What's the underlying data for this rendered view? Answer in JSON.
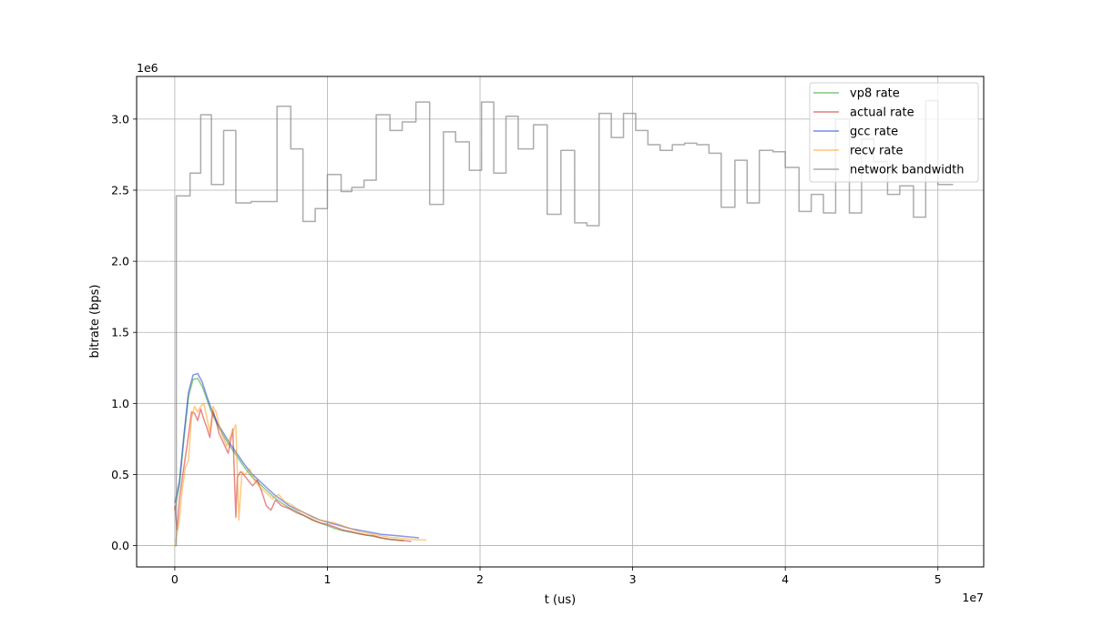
{
  "chart_data": {
    "type": "line",
    "xlabel": "t (us)",
    "ylabel": "bitrate (bps)",
    "x_offset_label": "1e7",
    "y_offset_label": "1e6",
    "xlim": [
      -2500000,
      53000000
    ],
    "ylim": [
      -150000,
      3300000
    ],
    "x_ticks": [
      0,
      10000000,
      20000000,
      30000000,
      40000000,
      50000000
    ],
    "x_tick_labels": [
      "0",
      "1",
      "2",
      "3",
      "4",
      "5"
    ],
    "y_ticks": [
      0,
      500000,
      1000000,
      1500000,
      2000000,
      2500000,
      3000000
    ],
    "y_tick_labels": [
      "0.0",
      "0.5",
      "1.0",
      "1.5",
      "2.0",
      "2.5",
      "3.0"
    ],
    "grid": true,
    "legend_position": "top-right",
    "series": [
      {
        "name": "vp8 rate",
        "color": "#2ca02c",
        "x": [
          0,
          300000,
          600000,
          900000,
          1200000,
          1500000,
          1800000,
          2100000,
          2400000,
          2800000,
          3200000,
          3600000,
          4000000,
          4500000,
          5000000,
          5500000,
          6000000,
          6500000,
          7000000,
          7500000,
          8000000,
          8500000,
          9000000,
          9500000,
          10000000,
          10500000,
          11000000,
          11500000,
          12000000,
          12500000,
          13000000,
          13500000,
          14000000,
          14500000,
          15000000
        ],
        "y": [
          250000,
          420000,
          750000,
          1050000,
          1170000,
          1175000,
          1120000,
          1030000,
          940000,
          850000,
          770000,
          700000,
          640000,
          560000,
          490000,
          440000,
          390000,
          340000,
          300000,
          265000,
          240000,
          210000,
          185000,
          160000,
          140000,
          120000,
          105000,
          95000,
          85000,
          75000,
          65000,
          55000,
          45000,
          40000,
          35000
        ]
      },
      {
        "name": "actual rate",
        "color": "#d62728",
        "x": [
          0,
          150000,
          300000,
          500000,
          800000,
          1100000,
          1300000,
          1500000,
          1700000,
          1900000,
          2100000,
          2300000,
          2500000,
          2700000,
          2900000,
          3200000,
          3500000,
          3800000,
          4000000,
          4100000,
          4300000,
          4500000,
          4800000,
          5100000,
          5400000,
          5700000,
          6000000,
          6300000,
          6600000,
          7000000,
          7500000,
          8000000,
          8500000,
          9000000,
          9500000,
          10000000,
          10500000,
          11000000,
          11500000,
          12000000,
          12500000,
          13000000,
          13500000,
          14000000,
          14500000,
          15000000,
          15500000
        ],
        "y": [
          280000,
          110000,
          320000,
          480000,
          700000,
          940000,
          930000,
          880000,
          960000,
          890000,
          830000,
          760000,
          950000,
          880000,
          790000,
          720000,
          650000,
          820000,
          200000,
          480000,
          520000,
          500000,
          460000,
          420000,
          460000,
          380000,
          280000,
          250000,
          320000,
          280000,
          260000,
          230000,
          210000,
          180000,
          160000,
          150000,
          130000,
          110000,
          100000,
          85000,
          75000,
          70000,
          55000,
          45000,
          40000,
          35000,
          30000
        ]
      },
      {
        "name": "gcc rate",
        "color": "#1f3fd6",
        "x": [
          0,
          300000,
          600000,
          900000,
          1200000,
          1500000,
          1800000,
          2100000,
          2400000,
          2800000,
          3200000,
          3600000,
          4000000,
          4500000,
          5000000,
          5500000,
          6000000,
          6500000,
          7000000,
          7500000,
          8000000,
          8500000,
          9000000,
          9500000,
          10000000,
          10500000,
          11000000,
          11500000,
          12000000,
          12500000,
          13000000,
          13500000,
          14000000,
          14500000,
          15000000,
          15500000,
          16000000
        ],
        "y": [
          300000,
          450000,
          780000,
          1080000,
          1200000,
          1210000,
          1150000,
          1050000,
          960000,
          860000,
          790000,
          720000,
          660000,
          580000,
          510000,
          460000,
          410000,
          360000,
          320000,
          280000,
          255000,
          230000,
          205000,
          180000,
          165000,
          150000,
          135000,
          120000,
          110000,
          100000,
          90000,
          80000,
          75000,
          70000,
          65000,
          60000,
          55000
        ]
      },
      {
        "name": "recv rate",
        "color": "#ff9f1a",
        "x": [
          0,
          300000,
          500000,
          700000,
          900000,
          1100000,
          1300000,
          1500000,
          1700000,
          1900000,
          2100000,
          2300000,
          2500000,
          2700000,
          2900000,
          3100000,
          3400000,
          3700000,
          4000000,
          4200000,
          4400000,
          4600000,
          4900000,
          5200000,
          5500000,
          5800000,
          6100000,
          6400000,
          6800000,
          7200000,
          7600000,
          8000000,
          8500000,
          9000000,
          9500000,
          10000000,
          10500000,
          11000000,
          11500000,
          12000000,
          12500000,
          13000000,
          13500000,
          14000000,
          14500000,
          15000000,
          15500000,
          16000000,
          16500000
        ],
        "y": [
          0,
          180000,
          400000,
          550000,
          600000,
          900000,
          980000,
          940000,
          980000,
          1000000,
          900000,
          800000,
          980000,
          940000,
          850000,
          780000,
          700000,
          780000,
          850000,
          180000,
          520000,
          500000,
          540000,
          460000,
          420000,
          390000,
          360000,
          330000,
          360000,
          310000,
          290000,
          260000,
          230000,
          200000,
          180000,
          170000,
          160000,
          140000,
          120000,
          100000,
          90000,
          80000,
          70000,
          60000,
          55000,
          50000,
          45000,
          40000,
          40000
        ]
      },
      {
        "name": "network bandwidth",
        "color": "#7f7f7f",
        "step": true,
        "x": [
          0,
          100000,
          1000000,
          1700000,
          2400000,
          3200000,
          4000000,
          5000000,
          6000000,
          6700000,
          7600000,
          8400000,
          9200000,
          10000000,
          10900000,
          11600000,
          12400000,
          13200000,
          14100000,
          14900000,
          15800000,
          16700000,
          17600000,
          18400000,
          19300000,
          20100000,
          20900000,
          21700000,
          22500000,
          23500000,
          24400000,
          25300000,
          26200000,
          27000000,
          27800000,
          28600000,
          29400000,
          30200000,
          31000000,
          31800000,
          32600000,
          33400000,
          34200000,
          35000000,
          35800000,
          36700000,
          37500000,
          38300000,
          39200000,
          40000000,
          40900000,
          41700000,
          42500000,
          43300000,
          44200000,
          45000000,
          45800000,
          46700000,
          47500000,
          48400000,
          49200000,
          50000000,
          51000000
        ],
        "y": [
          0,
          2460000,
          2620000,
          3030000,
          2540000,
          2920000,
          2410000,
          2420000,
          2420000,
          3090000,
          2790000,
          2280000,
          2370000,
          2610000,
          2490000,
          2520000,
          2570000,
          3030000,
          2920000,
          2980000,
          3120000,
          2400000,
          2910000,
          2840000,
          2640000,
          3120000,
          2620000,
          3020000,
          2790000,
          2960000,
          2330000,
          2780000,
          2270000,
          2250000,
          3040000,
          2870000,
          3040000,
          2920000,
          2820000,
          2780000,
          2820000,
          2830000,
          2820000,
          2760000,
          2380000,
          2710000,
          2410000,
          2780000,
          2770000,
          2660000,
          2350000,
          2470000,
          2340000,
          3000000,
          2340000,
          2860000,
          2700000,
          2470000,
          2530000,
          2310000,
          3130000,
          2540000,
          2540000
        ]
      }
    ]
  }
}
